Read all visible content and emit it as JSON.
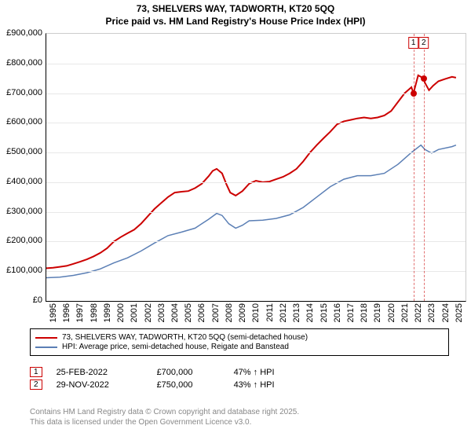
{
  "title": {
    "line1": "73, SHELVERS WAY, TADWORTH, KT20 5QQ",
    "line2": "Price paid vs. HM Land Registry's House Price Index (HPI)",
    "fontsize": 12,
    "color": "#000000"
  },
  "chart": {
    "type": "line",
    "background_color": "#ffffff",
    "grid_color": "#e8e8e8",
    "axis_color": "#000000",
    "x": {
      "min": 1995,
      "max": 2026,
      "ticks": [
        1995,
        1996,
        1997,
        1998,
        1999,
        2000,
        2001,
        2002,
        2003,
        2004,
        2005,
        2006,
        2007,
        2008,
        2009,
        2010,
        2011,
        2012,
        2013,
        2014,
        2015,
        2016,
        2017,
        2018,
        2019,
        2020,
        2021,
        2022,
        2023,
        2024,
        2025
      ],
      "label_fontsize": 11
    },
    "y": {
      "min": 0,
      "max": 900000,
      "ticks": [
        0,
        100000,
        200000,
        300000,
        400000,
        500000,
        600000,
        700000,
        800000,
        900000
      ],
      "tick_labels": [
        "£0",
        "£100,000",
        "£200,000",
        "£300,000",
        "£400,000",
        "£500,000",
        "£600,000",
        "£700,000",
        "£800,000",
        "£900,000"
      ],
      "label_fontsize": 11
    },
    "series": [
      {
        "name": "73, SHELVERS WAY, TADWORTH, KT20 5QQ (semi-detached house)",
        "color": "#cc0000",
        "line_width": 2,
        "data": [
          [
            1995,
            110000
          ],
          [
            1995.5,
            112000
          ],
          [
            1996,
            115000
          ],
          [
            1996.5,
            118000
          ],
          [
            1997,
            125000
          ],
          [
            1997.5,
            132000
          ],
          [
            1998,
            140000
          ],
          [
            1998.5,
            150000
          ],
          [
            1999,
            162000
          ],
          [
            1999.5,
            178000
          ],
          [
            2000,
            200000
          ],
          [
            2000.5,
            215000
          ],
          [
            2001,
            228000
          ],
          [
            2001.5,
            240000
          ],
          [
            2002,
            260000
          ],
          [
            2002.5,
            285000
          ],
          [
            2003,
            310000
          ],
          [
            2003.5,
            330000
          ],
          [
            2004,
            350000
          ],
          [
            2004.5,
            365000
          ],
          [
            2005,
            368000
          ],
          [
            2005.5,
            370000
          ],
          [
            2006,
            380000
          ],
          [
            2006.5,
            395000
          ],
          [
            2007,
            420000
          ],
          [
            2007.3,
            438000
          ],
          [
            2007.6,
            445000
          ],
          [
            2008,
            430000
          ],
          [
            2008.3,
            395000
          ],
          [
            2008.6,
            365000
          ],
          [
            2009,
            355000
          ],
          [
            2009.5,
            370000
          ],
          [
            2010,
            395000
          ],
          [
            2010.5,
            405000
          ],
          [
            2011,
            400000
          ],
          [
            2011.5,
            402000
          ],
          [
            2012,
            410000
          ],
          [
            2012.5,
            418000
          ],
          [
            2013,
            430000
          ],
          [
            2013.5,
            445000
          ],
          [
            2014,
            470000
          ],
          [
            2014.5,
            500000
          ],
          [
            2015,
            525000
          ],
          [
            2015.5,
            548000
          ],
          [
            2016,
            570000
          ],
          [
            2016.5,
            595000
          ],
          [
            2017,
            605000
          ],
          [
            2017.5,
            610000
          ],
          [
            2018,
            615000
          ],
          [
            2018.5,
            618000
          ],
          [
            2019,
            615000
          ],
          [
            2019.5,
            618000
          ],
          [
            2020,
            625000
          ],
          [
            2020.5,
            640000
          ],
          [
            2021,
            670000
          ],
          [
            2021.5,
            700000
          ],
          [
            2022,
            720000
          ],
          [
            2022.15,
            700000
          ],
          [
            2022.5,
            760000
          ],
          [
            2022.91,
            750000
          ],
          [
            2023,
            735000
          ],
          [
            2023.3,
            710000
          ],
          [
            2023.6,
            725000
          ],
          [
            2024,
            740000
          ],
          [
            2024.5,
            748000
          ],
          [
            2025,
            755000
          ],
          [
            2025.3,
            752000
          ]
        ]
      },
      {
        "name": "HPI: Average price, semi-detached house, Reigate and Banstead",
        "color": "#5b7fb5",
        "line_width": 1.5,
        "data": [
          [
            1995,
            78000
          ],
          [
            1996,
            80000
          ],
          [
            1997,
            86000
          ],
          [
            1998,
            95000
          ],
          [
            1999,
            108000
          ],
          [
            2000,
            128000
          ],
          [
            2001,
            145000
          ],
          [
            2002,
            168000
          ],
          [
            2003,
            195000
          ],
          [
            2004,
            220000
          ],
          [
            2005,
            232000
          ],
          [
            2006,
            245000
          ],
          [
            2007,
            275000
          ],
          [
            2007.6,
            295000
          ],
          [
            2008,
            288000
          ],
          [
            2008.5,
            260000
          ],
          [
            2009,
            245000
          ],
          [
            2009.5,
            255000
          ],
          [
            2010,
            270000
          ],
          [
            2011,
            272000
          ],
          [
            2012,
            278000
          ],
          [
            2013,
            290000
          ],
          [
            2014,
            315000
          ],
          [
            2015,
            350000
          ],
          [
            2016,
            385000
          ],
          [
            2017,
            410000
          ],
          [
            2018,
            422000
          ],
          [
            2019,
            422000
          ],
          [
            2020,
            430000
          ],
          [
            2021,
            460000
          ],
          [
            2022,
            500000
          ],
          [
            2022.7,
            525000
          ],
          [
            2023,
            510000
          ],
          [
            2023.5,
            498000
          ],
          [
            2024,
            510000
          ],
          [
            2025,
            520000
          ],
          [
            2025.3,
            525000
          ]
        ]
      }
    ],
    "markers": [
      {
        "label": "1",
        "year": 2022.15,
        "value": 700000,
        "color": "#cc0000"
      },
      {
        "label": "2",
        "year": 2022.91,
        "value": 750000,
        "color": "#cc0000"
      }
    ]
  },
  "legend": {
    "items": [
      {
        "color": "#cc0000",
        "label": "73, SHELVERS WAY, TADWORTH, KT20 5QQ (semi-detached house)"
      },
      {
        "color": "#5b7fb5",
        "label": "HPI: Average price, semi-detached house, Reigate and Banstead"
      }
    ],
    "border_color": "#000000",
    "fontsize": 10
  },
  "sales": [
    {
      "badge": "1",
      "badge_color": "#cc0000",
      "date": "25-FEB-2022",
      "price": "£700,000",
      "delta": "47% ↑ HPI"
    },
    {
      "badge": "2",
      "badge_color": "#cc0000",
      "date": "29-NOV-2022",
      "price": "£750,000",
      "delta": "43% ↑ HPI"
    }
  ],
  "footer": {
    "line1": "Contains HM Land Registry data © Crown copyright and database right 2025.",
    "line2": "This data is licensed under the Open Government Licence v3.0.",
    "color": "#888888",
    "fontsize": 10
  }
}
